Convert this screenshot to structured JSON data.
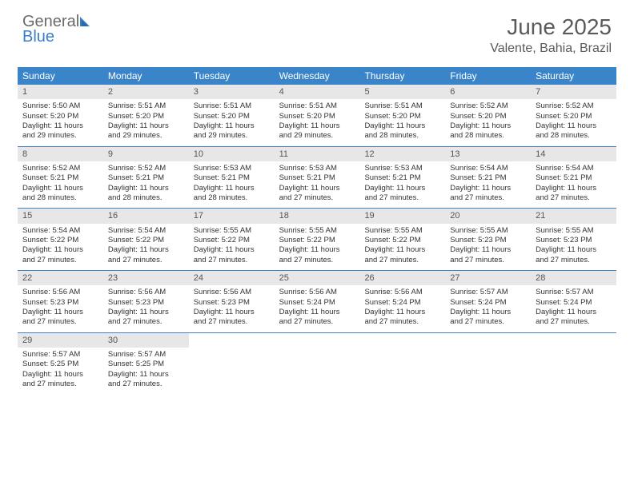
{
  "logo": {
    "word1": "General",
    "word2": "Blue"
  },
  "title": "June 2025",
  "location": "Valente, Bahia, Brazil",
  "colors": {
    "header_bg": "#3a85c9",
    "header_text": "#ffffff",
    "daynum_bg": "#e7e7e7",
    "daynum_text": "#555555",
    "body_text": "#333333",
    "rule": "#3a85c9",
    "logo_gray": "#6b6b6b",
    "logo_blue": "#3a7fc4"
  },
  "weekdays": [
    "Sunday",
    "Monday",
    "Tuesday",
    "Wednesday",
    "Thursday",
    "Friday",
    "Saturday"
  ],
  "weeks": [
    [
      {
        "n": "1",
        "sr": "Sunrise: 5:50 AM",
        "ss": "Sunset: 5:20 PM",
        "d1": "Daylight: 11 hours",
        "d2": "and 29 minutes."
      },
      {
        "n": "2",
        "sr": "Sunrise: 5:51 AM",
        "ss": "Sunset: 5:20 PM",
        "d1": "Daylight: 11 hours",
        "d2": "and 29 minutes."
      },
      {
        "n": "3",
        "sr": "Sunrise: 5:51 AM",
        "ss": "Sunset: 5:20 PM",
        "d1": "Daylight: 11 hours",
        "d2": "and 29 minutes."
      },
      {
        "n": "4",
        "sr": "Sunrise: 5:51 AM",
        "ss": "Sunset: 5:20 PM",
        "d1": "Daylight: 11 hours",
        "d2": "and 29 minutes."
      },
      {
        "n": "5",
        "sr": "Sunrise: 5:51 AM",
        "ss": "Sunset: 5:20 PM",
        "d1": "Daylight: 11 hours",
        "d2": "and 28 minutes."
      },
      {
        "n": "6",
        "sr": "Sunrise: 5:52 AM",
        "ss": "Sunset: 5:20 PM",
        "d1": "Daylight: 11 hours",
        "d2": "and 28 minutes."
      },
      {
        "n": "7",
        "sr": "Sunrise: 5:52 AM",
        "ss": "Sunset: 5:20 PM",
        "d1": "Daylight: 11 hours",
        "d2": "and 28 minutes."
      }
    ],
    [
      {
        "n": "8",
        "sr": "Sunrise: 5:52 AM",
        "ss": "Sunset: 5:21 PM",
        "d1": "Daylight: 11 hours",
        "d2": "and 28 minutes."
      },
      {
        "n": "9",
        "sr": "Sunrise: 5:52 AM",
        "ss": "Sunset: 5:21 PM",
        "d1": "Daylight: 11 hours",
        "d2": "and 28 minutes."
      },
      {
        "n": "10",
        "sr": "Sunrise: 5:53 AM",
        "ss": "Sunset: 5:21 PM",
        "d1": "Daylight: 11 hours",
        "d2": "and 28 minutes."
      },
      {
        "n": "11",
        "sr": "Sunrise: 5:53 AM",
        "ss": "Sunset: 5:21 PM",
        "d1": "Daylight: 11 hours",
        "d2": "and 27 minutes."
      },
      {
        "n": "12",
        "sr": "Sunrise: 5:53 AM",
        "ss": "Sunset: 5:21 PM",
        "d1": "Daylight: 11 hours",
        "d2": "and 27 minutes."
      },
      {
        "n": "13",
        "sr": "Sunrise: 5:54 AM",
        "ss": "Sunset: 5:21 PM",
        "d1": "Daylight: 11 hours",
        "d2": "and 27 minutes."
      },
      {
        "n": "14",
        "sr": "Sunrise: 5:54 AM",
        "ss": "Sunset: 5:21 PM",
        "d1": "Daylight: 11 hours",
        "d2": "and 27 minutes."
      }
    ],
    [
      {
        "n": "15",
        "sr": "Sunrise: 5:54 AM",
        "ss": "Sunset: 5:22 PM",
        "d1": "Daylight: 11 hours",
        "d2": "and 27 minutes."
      },
      {
        "n": "16",
        "sr": "Sunrise: 5:54 AM",
        "ss": "Sunset: 5:22 PM",
        "d1": "Daylight: 11 hours",
        "d2": "and 27 minutes."
      },
      {
        "n": "17",
        "sr": "Sunrise: 5:55 AM",
        "ss": "Sunset: 5:22 PM",
        "d1": "Daylight: 11 hours",
        "d2": "and 27 minutes."
      },
      {
        "n": "18",
        "sr": "Sunrise: 5:55 AM",
        "ss": "Sunset: 5:22 PM",
        "d1": "Daylight: 11 hours",
        "d2": "and 27 minutes."
      },
      {
        "n": "19",
        "sr": "Sunrise: 5:55 AM",
        "ss": "Sunset: 5:22 PM",
        "d1": "Daylight: 11 hours",
        "d2": "and 27 minutes."
      },
      {
        "n": "20",
        "sr": "Sunrise: 5:55 AM",
        "ss": "Sunset: 5:23 PM",
        "d1": "Daylight: 11 hours",
        "d2": "and 27 minutes."
      },
      {
        "n": "21",
        "sr": "Sunrise: 5:55 AM",
        "ss": "Sunset: 5:23 PM",
        "d1": "Daylight: 11 hours",
        "d2": "and 27 minutes."
      }
    ],
    [
      {
        "n": "22",
        "sr": "Sunrise: 5:56 AM",
        "ss": "Sunset: 5:23 PM",
        "d1": "Daylight: 11 hours",
        "d2": "and 27 minutes."
      },
      {
        "n": "23",
        "sr": "Sunrise: 5:56 AM",
        "ss": "Sunset: 5:23 PM",
        "d1": "Daylight: 11 hours",
        "d2": "and 27 minutes."
      },
      {
        "n": "24",
        "sr": "Sunrise: 5:56 AM",
        "ss": "Sunset: 5:23 PM",
        "d1": "Daylight: 11 hours",
        "d2": "and 27 minutes."
      },
      {
        "n": "25",
        "sr": "Sunrise: 5:56 AM",
        "ss": "Sunset: 5:24 PM",
        "d1": "Daylight: 11 hours",
        "d2": "and 27 minutes."
      },
      {
        "n": "26",
        "sr": "Sunrise: 5:56 AM",
        "ss": "Sunset: 5:24 PM",
        "d1": "Daylight: 11 hours",
        "d2": "and 27 minutes."
      },
      {
        "n": "27",
        "sr": "Sunrise: 5:57 AM",
        "ss": "Sunset: 5:24 PM",
        "d1": "Daylight: 11 hours",
        "d2": "and 27 minutes."
      },
      {
        "n": "28",
        "sr": "Sunrise: 5:57 AM",
        "ss": "Sunset: 5:24 PM",
        "d1": "Daylight: 11 hours",
        "d2": "and 27 minutes."
      }
    ],
    [
      {
        "n": "29",
        "sr": "Sunrise: 5:57 AM",
        "ss": "Sunset: 5:25 PM",
        "d1": "Daylight: 11 hours",
        "d2": "and 27 minutes."
      },
      {
        "n": "30",
        "sr": "Sunrise: 5:57 AM",
        "ss": "Sunset: 5:25 PM",
        "d1": "Daylight: 11 hours",
        "d2": "and 27 minutes."
      },
      null,
      null,
      null,
      null,
      null
    ]
  ]
}
